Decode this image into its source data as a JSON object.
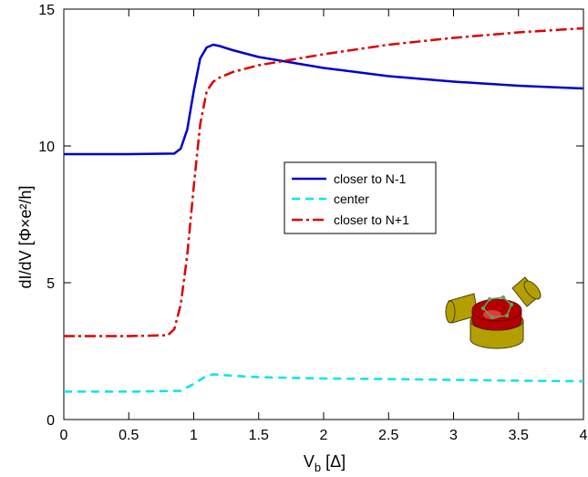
{
  "chart_data": {
    "type": "line",
    "xlabel_main": "V",
    "xlabel_sub": "b",
    "xlabel_unit": " [Δ]",
    "ylabel": "dI/dV  [Φ×e²/h]",
    "xlim": [
      0,
      4
    ],
    "ylim": [
      0,
      15
    ],
    "xticks": [
      "0",
      "0.5",
      "1",
      "1.5",
      "2",
      "2.5",
      "3",
      "3.5",
      "4"
    ],
    "yticks": [
      "0",
      "5",
      "10",
      "15"
    ],
    "grid": false,
    "legend_position": "center",
    "series": [
      {
        "name": "closer to N-1",
        "color": "#0000cc",
        "dash": "solid",
        "x": [
          0,
          0.5,
          0.85,
          0.9,
          0.95,
          1.0,
          1.05,
          1.1,
          1.15,
          1.2,
          1.3,
          1.5,
          2.0,
          2.5,
          3.0,
          3.5,
          4.0
        ],
        "y": [
          9.7,
          9.7,
          9.72,
          9.9,
          10.6,
          12.0,
          13.2,
          13.6,
          13.7,
          13.65,
          13.5,
          13.25,
          12.85,
          12.55,
          12.35,
          12.2,
          12.1
        ]
      },
      {
        "name": "center",
        "color": "#00e5ee",
        "dash": "dashed",
        "x": [
          0,
          0.5,
          0.9,
          1.0,
          1.1,
          1.15,
          1.3,
          1.5,
          2.0,
          2.5,
          3.0,
          3.5,
          4.0
        ],
        "y": [
          1.02,
          1.02,
          1.05,
          1.3,
          1.6,
          1.65,
          1.6,
          1.55,
          1.5,
          1.48,
          1.45,
          1.42,
          1.4
        ]
      },
      {
        "name": "closer to N+1",
        "color": "#dd0000",
        "dash": "dashdot",
        "x": [
          0,
          0.5,
          0.8,
          0.85,
          0.9,
          0.95,
          1.0,
          1.05,
          1.1,
          1.15,
          1.2,
          1.3,
          1.5,
          1.75,
          2.0,
          2.5,
          3.0,
          3.5,
          4.0
        ],
        "y": [
          3.05,
          3.05,
          3.08,
          3.3,
          4.2,
          6.0,
          8.5,
          10.8,
          12.0,
          12.35,
          12.5,
          12.7,
          12.95,
          13.15,
          13.35,
          13.7,
          13.95,
          14.15,
          14.3
        ]
      }
    ]
  },
  "inset": {
    "body_color": "#b30000",
    "lead_color": "#b3a000",
    "ring_color": "#5fa060"
  }
}
